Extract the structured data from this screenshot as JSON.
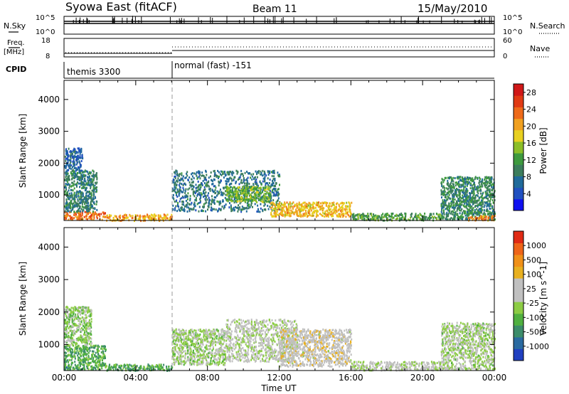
{
  "header": {
    "title": "Syowa East (fitACF)",
    "beam": "Beam 11",
    "date": "15/May/2010"
  },
  "nsky_panel": {
    "left_label": "N.Sky",
    "right_label": "N.Search",
    "left_ticks": [
      "10^5",
      "10^0"
    ],
    "right_ticks": [
      "10^5",
      "10^0"
    ]
  },
  "freq_panel": {
    "left_label_1": "Freq.",
    "left_label_2": "[MHz]",
    "left_ticks": [
      "18",
      "8"
    ],
    "right_label": "Nave",
    "right_ticks": [
      "60",
      "0"
    ]
  },
  "cpid_panel": {
    "label": "CPID",
    "modes": [
      {
        "name": "themis 3300",
        "start_hour": 0
      },
      {
        "name": "normal (fast) -151",
        "start_hour": 6
      }
    ]
  },
  "x_axis": {
    "label": "Time UT",
    "ticks": [
      "00:00",
      "04:00",
      "08:00",
      "12:00",
      "16:00",
      "20:00",
      "00:00"
    ]
  },
  "chart_data": [
    {
      "type": "heatmap",
      "title": "",
      "xlabel": "Time UT",
      "ylabel": "Slant Range [km]",
      "xlim": [
        0,
        24
      ],
      "ylim": [
        200,
        4600
      ],
      "yticks": [
        "1000",
        "2000",
        "3000",
        "4000"
      ],
      "colorbar": {
        "label": "Power [dB]",
        "range": [
          0,
          30
        ],
        "ticks": [
          "4",
          "8",
          "12",
          "16",
          "20",
          "24",
          "28"
        ],
        "colors": [
          "#1010f0",
          "#2050c0",
          "#206a9a",
          "#3c7d5c",
          "#3e9a3e",
          "#8cbe28",
          "#e8d020",
          "#f0a020",
          "#ee6a1a",
          "#e03a14",
          "#d01818"
        ]
      },
      "echo_regions": [
        {
          "t0": 0.0,
          "t1": 2.3,
          "r0": 250,
          "r1": 500,
          "value": 23
        },
        {
          "t0": 0.0,
          "t1": 1.8,
          "r0": 500,
          "r1": 1800,
          "value": 9
        },
        {
          "t0": 0.0,
          "t1": 1.0,
          "r0": 1800,
          "r1": 2500,
          "value": 6
        },
        {
          "t0": 2.3,
          "t1": 6.0,
          "r0": 220,
          "r1": 420,
          "value": 20
        },
        {
          "t0": 6.0,
          "t1": 12.0,
          "r0": 500,
          "r1": 1800,
          "value": 8
        },
        {
          "t0": 9.0,
          "t1": 11.5,
          "r0": 800,
          "r1": 1300,
          "value": 14
        },
        {
          "t0": 11.5,
          "t1": 16.0,
          "r0": 350,
          "r1": 800,
          "value": 19
        },
        {
          "t0": 16.0,
          "t1": 21.0,
          "r0": 230,
          "r1": 450,
          "value": 12
        },
        {
          "t0": 21.0,
          "t1": 24.0,
          "r0": 250,
          "r1": 1600,
          "value": 10
        },
        {
          "t0": 22.5,
          "t1": 24.0,
          "r0": 230,
          "r1": 380,
          "value": 22
        }
      ]
    },
    {
      "type": "heatmap",
      "title": "",
      "xlabel": "Time UT",
      "ylabel": "Slant Range [km]",
      "xlim": [
        0,
        24
      ],
      "ylim": [
        200,
        4600
      ],
      "yticks": [
        "1000",
        "2000",
        "3000",
        "4000"
      ],
      "colorbar": {
        "label": "Velocity [m s^-1]",
        "range": [
          -1200,
          1200
        ],
        "ticks": [
          "1000",
          "500",
          "100",
          "25",
          "-25",
          "-100",
          "-500",
          "-1000"
        ],
        "colors": [
          "#2040c0",
          "#2a6aa0",
          "#3c8c6a",
          "#50b040",
          "#8ccc44",
          "#c0c0c0",
          "#c0c0c0",
          "#e8b020",
          "#f09018",
          "#ee6418",
          "#e02a14"
        ]
      },
      "echo_regions": [
        {
          "t0": 0.0,
          "t1": 2.3,
          "r0": 250,
          "r1": 1000,
          "value": -500
        },
        {
          "t0": 0.0,
          "t1": 1.5,
          "r0": 1000,
          "r1": 2200,
          "value": -200
        },
        {
          "t0": 2.3,
          "t1": 6.0,
          "r0": 220,
          "r1": 420,
          "value": -500
        },
        {
          "t0": 6.0,
          "t1": 9.0,
          "r0": 400,
          "r1": 1500,
          "value": -120
        },
        {
          "t0": 9.0,
          "t1": 13.0,
          "r0": 500,
          "r1": 1800,
          "value": 0
        },
        {
          "t0": 12.0,
          "t1": 16.0,
          "r0": 350,
          "r1": 1500,
          "value": 150
        },
        {
          "t0": 16.0,
          "t1": 21.0,
          "r0": 230,
          "r1": 500,
          "value": 0
        },
        {
          "t0": 21.0,
          "t1": 24.0,
          "r0": 250,
          "r1": 1700,
          "value": -100
        }
      ]
    }
  ]
}
